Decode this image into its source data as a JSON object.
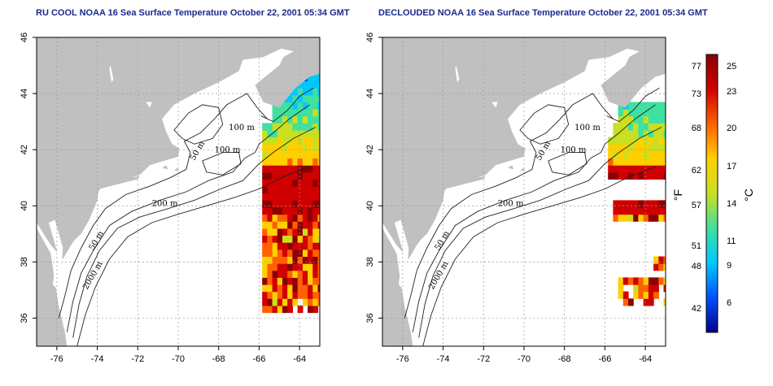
{
  "panels": [
    {
      "id": "left",
      "title": "RU COOL NOAA 16 Sea Surface Temperature October 22, 2001 05:34 GMT",
      "variant": "cool",
      "contour_labels": [
        "100 m",
        "100 m",
        "50 m",
        "200 m",
        "50 m",
        "2000 m"
      ]
    },
    {
      "id": "right",
      "title": "DECLOUDED NOAA 16 Sea Surface Temperature October 22, 2001 05:34 GMT",
      "variant": "declouded",
      "contour_labels": [
        "100 m",
        "100 m",
        "50 m",
        "200 m",
        "50 m",
        "2000 m"
      ]
    }
  ],
  "axes": {
    "x_ticks": [
      "-76",
      "-74",
      "-72",
      "-70",
      "-68",
      "-66",
      "-64"
    ],
    "y_ticks": [
      "36",
      "38",
      "40",
      "42",
      "44",
      "46"
    ],
    "grid": "dotted"
  },
  "colorbar": {
    "unit_left": "°F",
    "unit_right": "°C",
    "f_ticks": [
      "77",
      "73",
      "68",
      "62",
      "57",
      "51",
      "48",
      "42"
    ],
    "c_ticks": [
      "25",
      "23",
      "20",
      "17",
      "14",
      "11",
      "9",
      "6"
    ],
    "colors": [
      "#00008b",
      "#0050ff",
      "#00c8ff",
      "#40e0a0",
      "#c8e020",
      "#ffd000",
      "#ff6000",
      "#d00000",
      "#8b0000"
    ]
  },
  "colors": {
    "land": "#c0c0c0",
    "water": "#ffffff",
    "title": "#1a2a8c",
    "contour": "#222222"
  }
}
